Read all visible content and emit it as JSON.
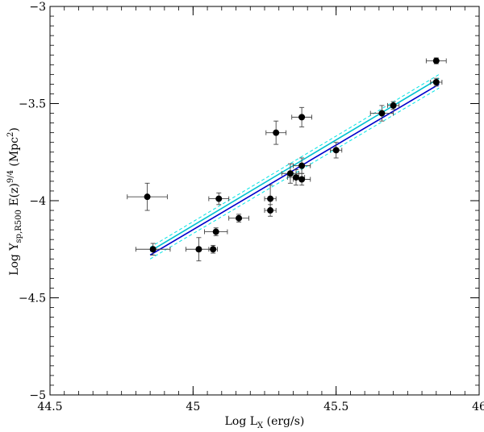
{
  "chart_data": {
    "type": "scatter",
    "xlabel": {
      "main": "Log L",
      "sub": "X",
      "tail": " (erg/s)"
    },
    "ylabel": {
      "main": "Log Y",
      "sub": "sp,R500",
      "mid": "  E(z)",
      "sup1": "9/4",
      "mid2": " (Mpc",
      "sup2": "2",
      "tail": ")"
    },
    "xlim": [
      44.5,
      46.0
    ],
    "ylim": [
      -5.0,
      -3.0
    ],
    "xticks": [
      44.5,
      45.0,
      45.5,
      46.0
    ],
    "xtick_labels": [
      "44.5",
      "45",
      "45.5",
      "46"
    ],
    "yticks": [
      -5.0,
      -4.5,
      -4.0,
      -3.5,
      -3.0
    ],
    "ytick_labels": [
      "−5",
      "−4.5",
      "−4",
      "−3.5",
      "−3"
    ],
    "minor_x_step": 0.05,
    "minor_y_step": 0.05,
    "grid": false,
    "points": [
      {
        "x": 44.84,
        "y": -3.98,
        "xerr": 0.07,
        "yerr": 0.07
      },
      {
        "x": 44.86,
        "y": -4.25,
        "xerr": 0.06,
        "yerr": 0.03
      },
      {
        "x": 45.02,
        "y": -4.25,
        "xerr": 0.045,
        "yerr": 0.06
      },
      {
        "x": 45.07,
        "y": -4.25,
        "xerr": 0.015,
        "yerr": 0.02
      },
      {
        "x": 45.08,
        "y": -4.16,
        "xerr": 0.04,
        "yerr": 0.02
      },
      {
        "x": 45.09,
        "y": -3.99,
        "xerr": 0.035,
        "yerr": 0.03
      },
      {
        "x": 45.16,
        "y": -4.09,
        "xerr": 0.035,
        "yerr": 0.02
      },
      {
        "x": 45.27,
        "y": -4.05,
        "xerr": 0.02,
        "yerr": 0.03
      },
      {
        "x": 45.27,
        "y": -3.99,
        "xerr": 0.02,
        "yerr": 0.07
      },
      {
        "x": 45.29,
        "y": -3.65,
        "xerr": 0.035,
        "yerr": 0.06
      },
      {
        "x": 45.34,
        "y": -3.86,
        "xerr": 0.03,
        "yerr": 0.05
      },
      {
        "x": 45.36,
        "y": -3.88,
        "xerr": 0.03,
        "yerr": 0.04
      },
      {
        "x": 45.38,
        "y": -3.82,
        "xerr": 0.03,
        "yerr": 0.04
      },
      {
        "x": 45.38,
        "y": -3.89,
        "xerr": 0.03,
        "yerr": 0.03
      },
      {
        "x": 45.38,
        "y": -3.57,
        "xerr": 0.035,
        "yerr": 0.05
      },
      {
        "x": 45.5,
        "y": -3.74,
        "xerr": 0.02,
        "yerr": 0.04
      },
      {
        "x": 45.66,
        "y": -3.55,
        "xerr": 0.04,
        "yerr": 0.04
      },
      {
        "x": 45.7,
        "y": -3.51,
        "xerr": 0.02,
        "yerr": 0.02
      },
      {
        "x": 45.85,
        "y": -3.28,
        "xerr": 0.035,
        "yerr": 0.015
      },
      {
        "x": 45.85,
        "y": -3.39,
        "xerr": 0.02,
        "yerr": 0.02
      }
    ],
    "fits": [
      {
        "kind": "band-upper",
        "color": "#00e5e5",
        "dash": true,
        "x": [
          44.85,
          45.86
        ],
        "y": [
          -4.24,
          -3.35
        ]
      },
      {
        "kind": "band-lower",
        "color": "#00e5e5",
        "dash": true,
        "x": [
          44.85,
          45.86
        ],
        "y": [
          -4.3,
          -3.42
        ]
      },
      {
        "kind": "fit",
        "color": "#00c0d0",
        "dash": false,
        "x": [
          44.85,
          45.86
        ],
        "y": [
          -4.26,
          -3.37
        ]
      },
      {
        "kind": "fit",
        "color": "#0000cc",
        "dash": false,
        "x": [
          44.85,
          45.86
        ],
        "y": [
          -4.28,
          -3.4
        ]
      }
    ]
  }
}
